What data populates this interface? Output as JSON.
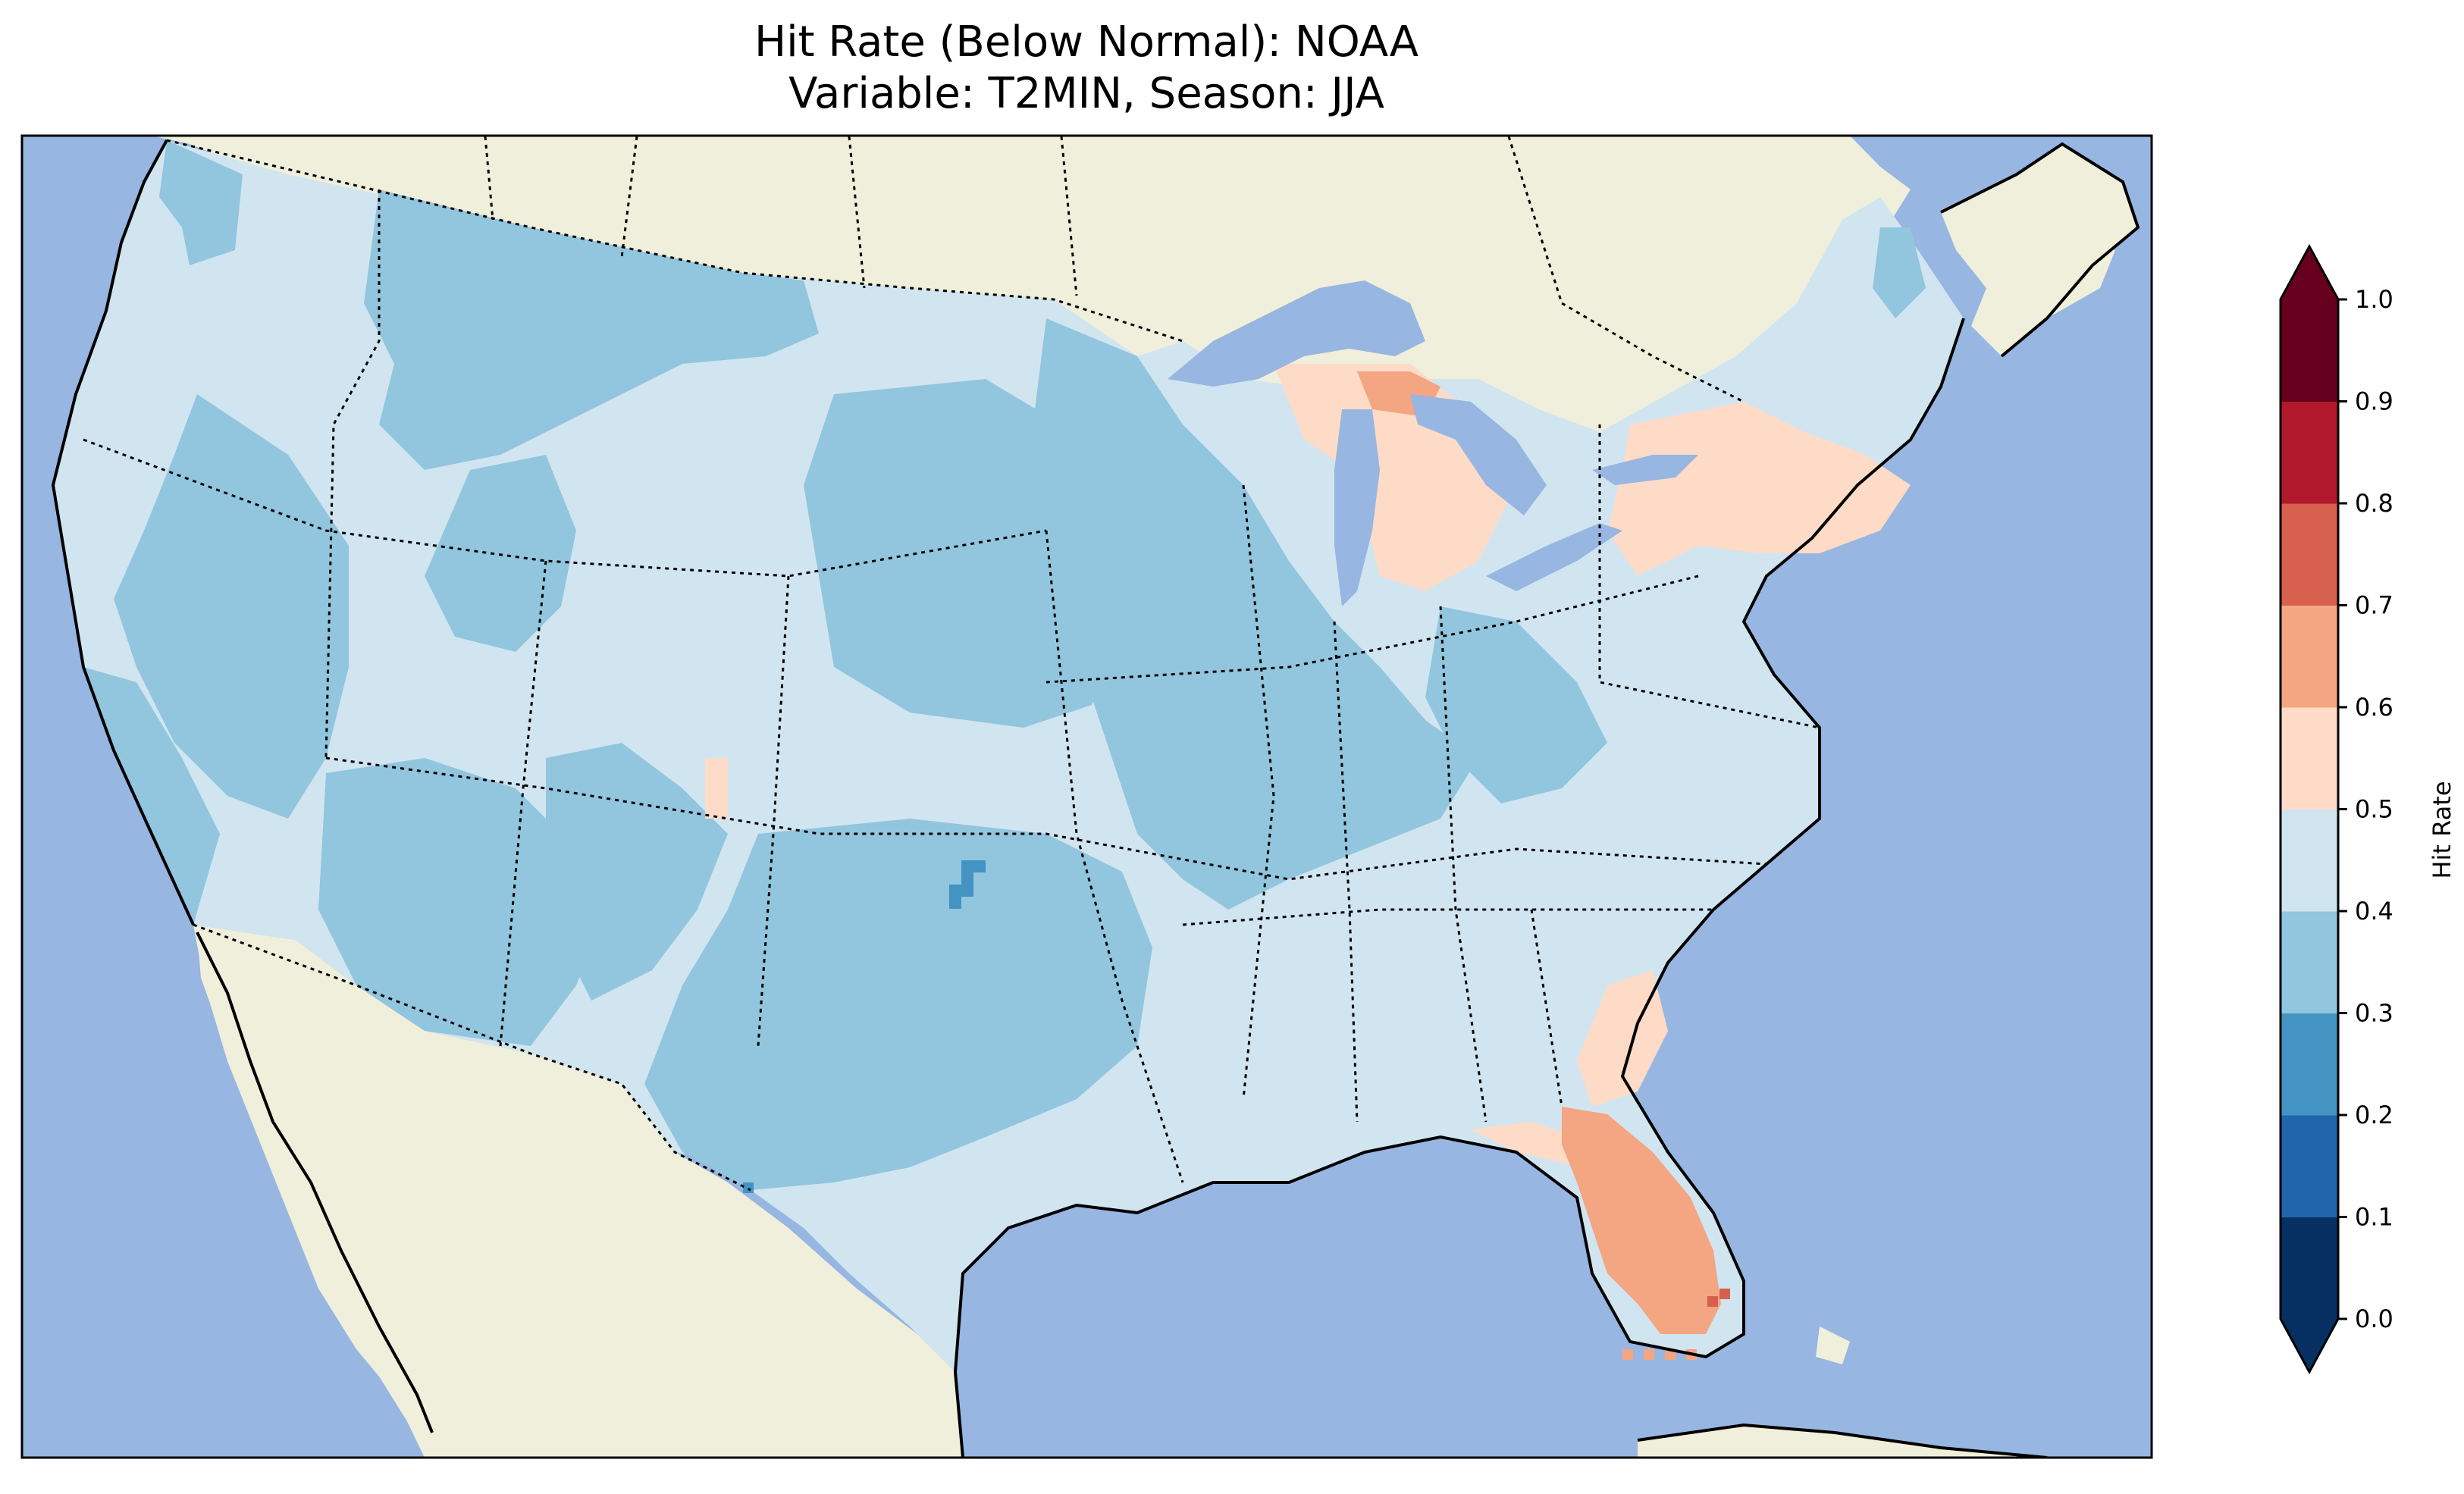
{
  "title": {
    "line1": "Hit Rate (Below Normal): NOAA",
    "line2": "Variable: T2MIN, Season: JJA"
  },
  "colorbar": {
    "label": "Hit Rate",
    "ticks": [
      "0.0",
      "0.1",
      "0.2",
      "0.3",
      "0.4",
      "0.5",
      "0.6",
      "0.7",
      "0.8",
      "0.9",
      "1.0"
    ],
    "colors": [
      "#053061",
      "#2166ac",
      "#4393c3",
      "#92c5de",
      "#d1e5f0",
      "#fddbc7",
      "#f4a582",
      "#d6604d",
      "#b2182b",
      "#67001f"
    ],
    "under_color": "#053061",
    "over_color": "#67001f",
    "extend": "both"
  },
  "colors": {
    "ocean": "#97b6e1",
    "land": "#efefdb",
    "c_0_1": "#053061",
    "c_1_2": "#2166ac",
    "c_2_3": "#4393c3",
    "c_3_4": "#92c5de",
    "c_4_5": "#d1e5f0",
    "c_5_6": "#fddbc7",
    "c_6_7": "#f4a582",
    "c_7_8": "#d6604d"
  },
  "regions": [
    {
      "name": "Western & Central US",
      "hit_rate_bin": "0.3-0.5"
    },
    {
      "name": "Great Lakes & Northeast",
      "hit_rate_bin": "0.5-0.6"
    },
    {
      "name": "Michigan Upper Peninsula",
      "hit_rate_bin": "0.6-0.7"
    },
    {
      "name": "Florida Peninsula",
      "hit_rate_bin": "0.6-0.7"
    },
    {
      "name": "Central Oklahoma",
      "hit_rate_bin": "0.2-0.3"
    }
  ]
}
